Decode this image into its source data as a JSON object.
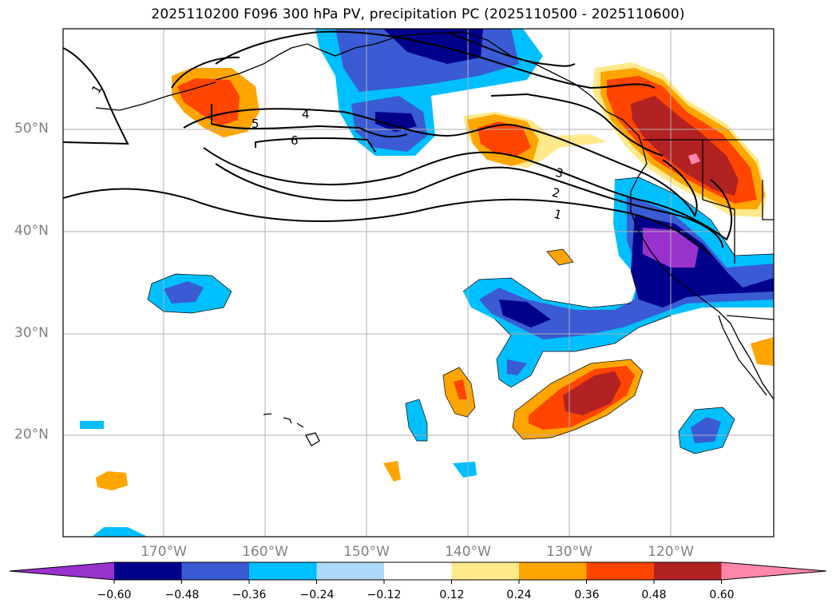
{
  "title": "2025110200 F096 300 hPa PV, precipitation PC (2025110500 - 2025110600)",
  "lat_labels": [
    "50°N",
    "40°N",
    "30°N",
    "20°N"
  ],
  "lon_labels": [
    "170°W",
    "160°W",
    "150°W",
    "140°W",
    "130°W",
    "120°W"
  ],
  "contour_labels": [
    "1",
    "1",
    "2",
    "3",
    "4",
    "5",
    "6"
  ],
  "colorbar": {
    "ticks": [
      "−0.60",
      "−0.48",
      "−0.36",
      "−0.24",
      "−0.12",
      "0.12",
      "0.24",
      "0.36",
      "0.48",
      "0.60"
    ],
    "colors": [
      "#9932cc",
      "#00008b",
      "#3a5bd3",
      "#00bfff",
      "#add8f7",
      "#ffffff",
      "#ffe98a",
      "#ffa500",
      "#ff4500",
      "#b22222",
      "#ff88aa"
    ]
  }
}
